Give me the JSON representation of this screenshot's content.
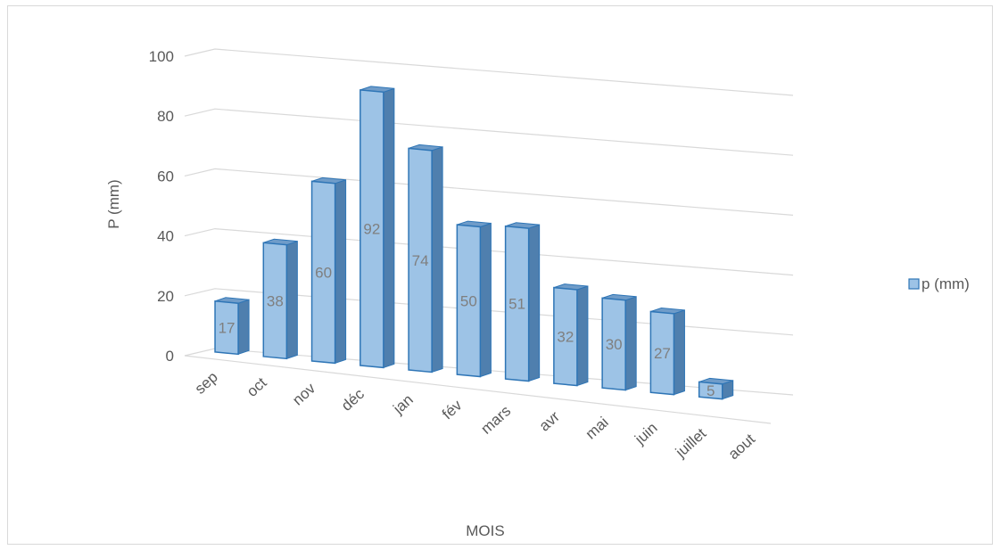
{
  "chart_data": {
    "type": "bar",
    "categories": [
      "sep",
      "oct",
      "nov",
      "déc",
      "jan",
      "fév",
      "mars",
      "avr",
      "mai",
      "juin",
      "juillet",
      "aout"
    ],
    "series": [
      {
        "name": "p (mm)",
        "values": [
          17,
          38,
          60,
          92,
          74,
          50,
          51,
          32,
          30,
          27,
          5,
          null
        ]
      }
    ],
    "data_labels": [
      "17",
      "38",
      "60",
      "92",
      "74",
      "50",
      "51",
      "32",
      "30",
      "27",
      "5",
      ""
    ],
    "title": "",
    "xlabel": "MOIS",
    "ylabel": "P (mm)",
    "ylim": [
      0,
      100
    ],
    "yticks": [
      "0",
      "20",
      "40",
      "60",
      "80",
      "100"
    ],
    "grid": true,
    "legend_position": "right",
    "style": "3d-column",
    "colors": {
      "bar_front": "#9dc3e6",
      "bar_side": "#4f7fae",
      "bar_top": "#6f9cc9",
      "bar_edge": "#2e75b6",
      "grid": "#d9d9d9",
      "text": "#595959"
    }
  }
}
